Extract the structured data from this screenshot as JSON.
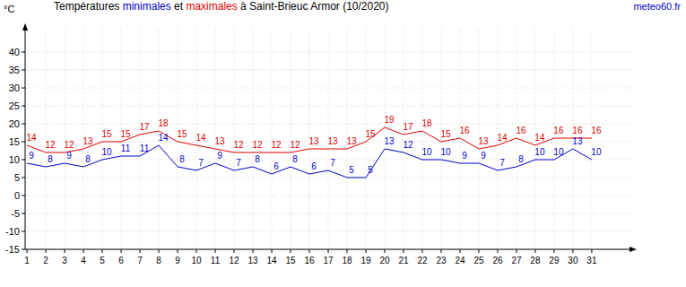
{
  "chart_data": {
    "type": "line",
    "title": "Températures minimales et maximales à Saint-Brieuc Armor (10/2020)",
    "source": "meteo60.fr",
    "y_label": "°C",
    "x": [
      1,
      2,
      3,
      4,
      5,
      6,
      7,
      8,
      9,
      10,
      11,
      12,
      13,
      14,
      15,
      16,
      17,
      18,
      19,
      20,
      21,
      22,
      23,
      24,
      25,
      26,
      27,
      28,
      29,
      30,
      31
    ],
    "series": [
      {
        "name": "minimales",
        "color": "#0000cc",
        "values": [
          9,
          8,
          9,
          8,
          10,
          11,
          11,
          14,
          8,
          7,
          9,
          7,
          8,
          6,
          8,
          6,
          7,
          5,
          5,
          13,
          12,
          10,
          10,
          9,
          9,
          7,
          8,
          10,
          10,
          13,
          10
        ]
      },
      {
        "name": "maximales",
        "color": "#e00000",
        "values": [
          14,
          12,
          12,
          13,
          15,
          15,
          17,
          18,
          15,
          14,
          13,
          12,
          12,
          12,
          12,
          13,
          13,
          13,
          15,
          19,
          17,
          18,
          15,
          16,
          13,
          14,
          16,
          14,
          16,
          16,
          16
        ]
      }
    ],
    "xlim": [
      0.9,
      33.1
    ],
    "xticks": [
      1,
      2,
      3,
      4,
      5,
      6,
      7,
      8,
      9,
      10,
      11,
      12,
      13,
      14,
      15,
      16,
      17,
      18,
      19,
      20,
      21,
      22,
      23,
      24,
      25,
      26,
      27,
      28,
      29,
      30,
      31
    ],
    "ylim": [
      -15,
      45
    ],
    "yticks": [
      -15,
      -10,
      -5,
      0,
      5,
      10,
      15,
      20,
      25,
      30,
      35,
      40
    ],
    "grid": true,
    "data_labels": true
  }
}
